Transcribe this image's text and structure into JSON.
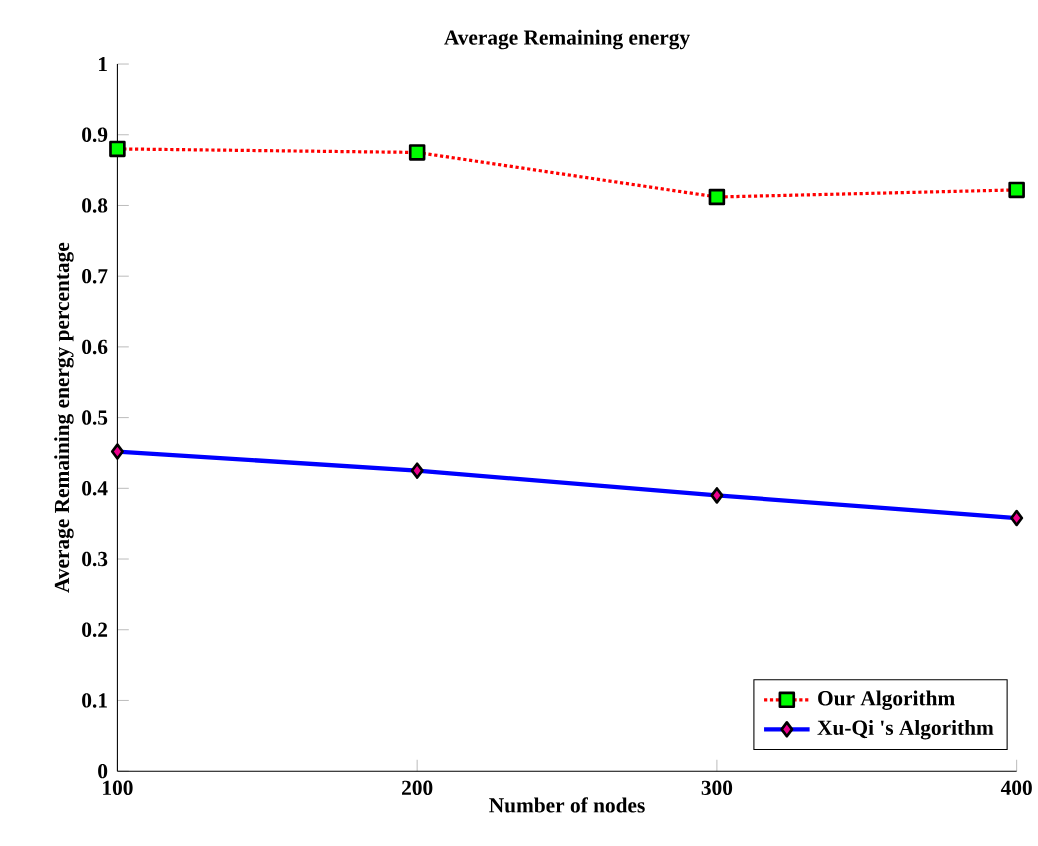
{
  "chart_data": {
    "type": "line",
    "title": "Average Remaining energy",
    "xlabel": "Number of nodes",
    "ylabel": "Average Remaining energy percentage",
    "x": [
      100,
      200,
      300,
      400
    ],
    "series": [
      {
        "name": "Our Algorithm",
        "color": "#ff0000",
        "values": [
          0.88,
          0.875,
          0.812,
          0.822
        ],
        "marker": "square",
        "line_style": "dotted"
      },
      {
        "name": "Xu-Qi 's Algorithm",
        "color": "#0000ff",
        "values": [
          0.452,
          0.425,
          0.39,
          0.358
        ],
        "marker": "diamond",
        "line_style": "solid"
      }
    ],
    "xlim": [
      100,
      400
    ],
    "xticks": [
      100,
      200,
      300,
      400
    ],
    "ylim": [
      0,
      1
    ],
    "yticks": [
      0,
      0.1,
      0.2,
      0.3,
      0.4,
      0.5,
      0.6,
      0.7,
      0.8,
      0.9,
      1
    ],
    "grid": false,
    "legend": "bottom right"
  }
}
